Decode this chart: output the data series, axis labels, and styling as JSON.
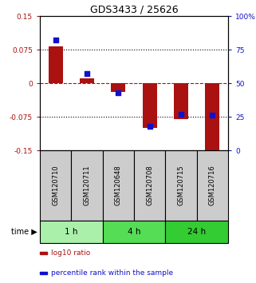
{
  "title": "GDS3433 / 25626",
  "samples": [
    "GSM120710",
    "GSM120711",
    "GSM120648",
    "GSM120708",
    "GSM120715",
    "GSM120716"
  ],
  "log10_ratio": [
    0.082,
    0.01,
    -0.02,
    -0.1,
    -0.08,
    -0.155
  ],
  "percentile_rank": [
    82,
    57,
    43,
    18,
    27,
    26
  ],
  "ylim_left": [
    -0.15,
    0.15
  ],
  "ylim_right": [
    0,
    100
  ],
  "yticks_left": [
    -0.15,
    -0.075,
    0,
    0.075,
    0.15
  ],
  "ytick_labels_left": [
    "-0.15",
    "-0.075",
    "0",
    "0.075",
    "0.15"
  ],
  "yticks_right": [
    0,
    25,
    50,
    75,
    100
  ],
  "ytick_labels_right": [
    "0",
    "25",
    "50",
    "75",
    "100%"
  ],
  "hline_dotted": [
    0.075,
    -0.075
  ],
  "hline_dashed": [
    0
  ],
  "bar_color": "#aa1111",
  "dot_color": "#1111cc",
  "time_groups": [
    {
      "label": "1 h",
      "samples": [
        0,
        1
      ],
      "color": "#aaf0aa"
    },
    {
      "label": "4 h",
      "samples": [
        2,
        3
      ],
      "color": "#55dd55"
    },
    {
      "label": "24 h",
      "samples": [
        4,
        5
      ],
      "color": "#33cc33"
    }
  ],
  "legend_items": [
    {
      "label": "log10 ratio",
      "color": "#aa1111"
    },
    {
      "label": "percentile rank within the sample",
      "color": "#1111cc"
    }
  ],
  "bar_width": 0.45,
  "dot_size": 18,
  "label_bg_color": "#cccccc",
  "fig_width": 3.21,
  "fig_height": 3.54,
  "dpi": 100
}
